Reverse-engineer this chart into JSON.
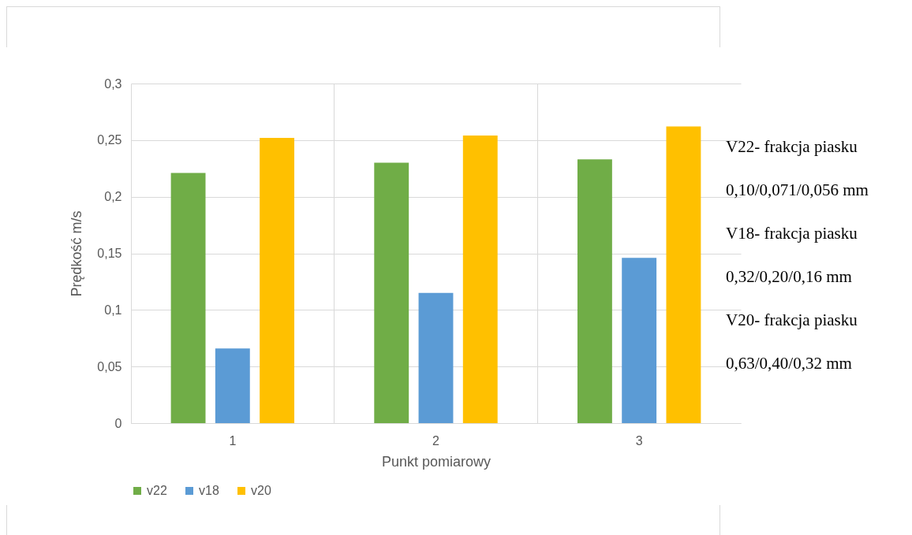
{
  "chart_data": {
    "type": "bar",
    "categories": [
      "1",
      "2",
      "3"
    ],
    "series": [
      {
        "name": "v22",
        "color": "#70ad47",
        "values": [
          0.221,
          0.23,
          0.233
        ]
      },
      {
        "name": "v18",
        "color": "#5b9bd5",
        "values": [
          0.066,
          0.115,
          0.146
        ]
      },
      {
        "name": "v20",
        "color": "#ffc000",
        "values": [
          0.252,
          0.254,
          0.262
        ]
      }
    ],
    "xlabel": "Punkt pomiarowy",
    "ylabel": "Prędkość m/s",
    "ylim": [
      0,
      0.3
    ],
    "yticks": [
      {
        "value": 0,
        "label": "0"
      },
      {
        "value": 0.05,
        "label": "0,05"
      },
      {
        "value": 0.1,
        "label": "0,1"
      },
      {
        "value": 0.15,
        "label": "0,15"
      },
      {
        "value": 0.2,
        "label": "0,2"
      },
      {
        "value": 0.25,
        "label": "0,25"
      },
      {
        "value": 0.3,
        "label": "0,3"
      }
    ],
    "grid": true,
    "legend": "bottom",
    "annotations": [
      "V22- frakcja piasku",
      "0,10/0,071/0,056 mm",
      "V18- frakcja piasku",
      "0,32/0,20/0,16 mm",
      "V20- frakcja piasku",
      "0,63/0,40/0,32 mm"
    ]
  }
}
